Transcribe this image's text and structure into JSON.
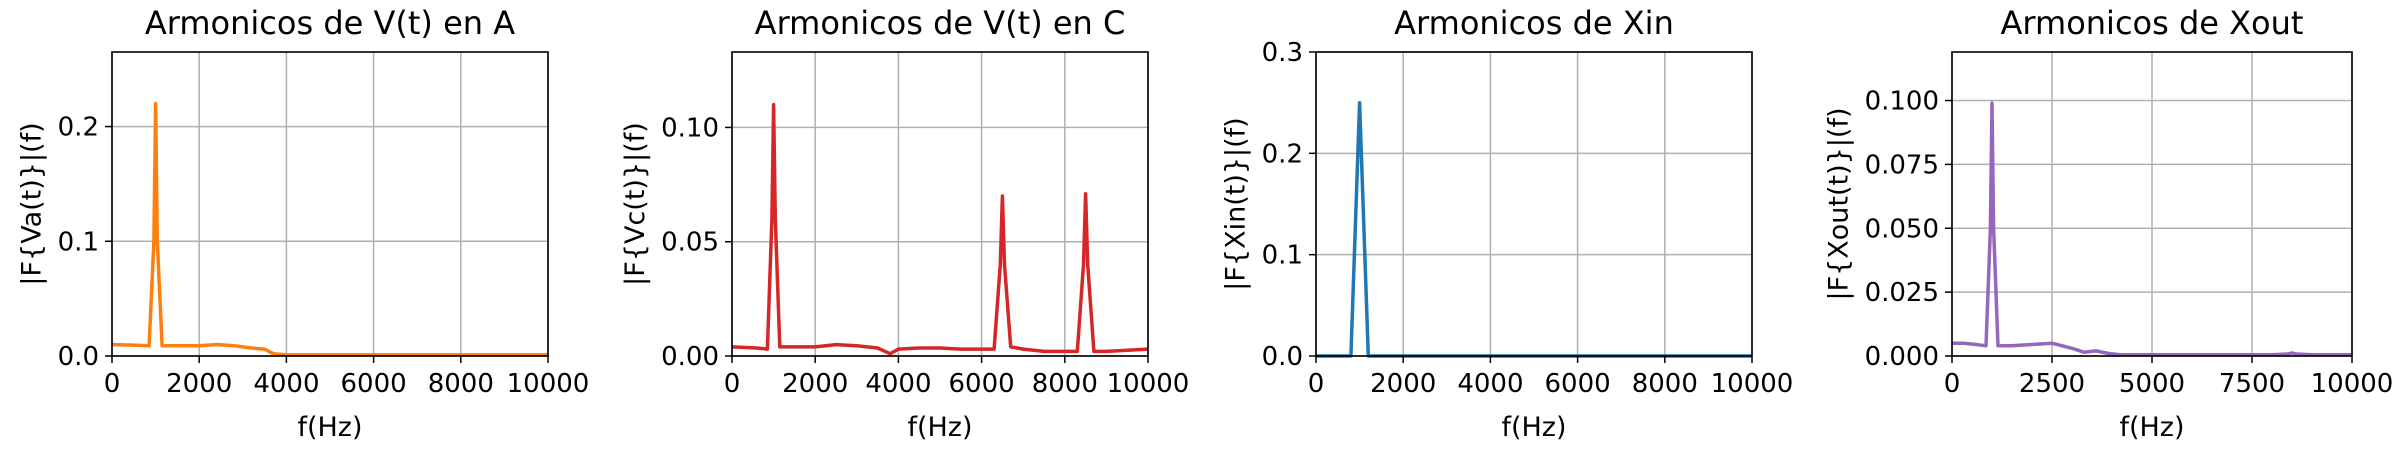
{
  "chart_data": [
    {
      "type": "line",
      "title": "Armonicos de V(t) en A",
      "xlabel": "f(Hz)",
      "ylabel": "|F{Va(t)}|(f)",
      "color": "#ff7f0e",
      "grid": true,
      "xlim": [
        0,
        10000
      ],
      "ylim": [
        0,
        0.265
      ],
      "xticks": [
        0,
        2000,
        4000,
        6000,
        8000,
        10000
      ],
      "xtick_labels": [
        "0",
        "2000",
        "4000",
        "6000",
        "8000",
        "10000"
      ],
      "yticks": [
        0,
        0.1,
        0.2
      ],
      "ytick_labels": [
        "0.0",
        "0.1",
        "0.2"
      ],
      "x": [
        0,
        500,
        850,
        960,
        1000,
        1040,
        1150,
        1500,
        2000,
        2400,
        2800,
        3200,
        3500,
        3700,
        4000,
        6000,
        8000,
        10000
      ],
      "y": [
        0.01,
        0.0095,
        0.009,
        0.1,
        0.22,
        0.1,
        0.009,
        0.009,
        0.009,
        0.01,
        0.009,
        0.007,
        0.006,
        0.002,
        0.001,
        0.001,
        0.001,
        0.001
      ]
    },
    {
      "type": "line",
      "title": "Armonicos de V(t) en C",
      "xlabel": "f(Hz)",
      "ylabel": "|F{Vc(t)}|(f)",
      "color": "#d62728",
      "grid": true,
      "xlim": [
        0,
        10000
      ],
      "ylim": [
        0,
        0.133
      ],
      "xticks": [
        0,
        2000,
        4000,
        6000,
        8000,
        10000
      ],
      "xtick_labels": [
        "0",
        "2000",
        "4000",
        "6000",
        "8000",
        "10000"
      ],
      "yticks": [
        0,
        0.05,
        0.1
      ],
      "ytick_labels": [
        "0.00",
        "0.05",
        "0.10"
      ],
      "x": [
        0,
        600,
        850,
        960,
        1000,
        1040,
        1150,
        1500,
        2000,
        2500,
        3000,
        3500,
        3800,
        4000,
        4500,
        5000,
        5500,
        6000,
        6300,
        6450,
        6500,
        6550,
        6700,
        7000,
        7500,
        8000,
        8300,
        8450,
        8500,
        8550,
        8700,
        9000,
        9500,
        10000
      ],
      "y": [
        0.004,
        0.0035,
        0.003,
        0.06,
        0.11,
        0.06,
        0.004,
        0.004,
        0.004,
        0.005,
        0.0045,
        0.0035,
        0.001,
        0.003,
        0.0035,
        0.0035,
        0.003,
        0.003,
        0.003,
        0.04,
        0.07,
        0.04,
        0.004,
        0.003,
        0.002,
        0.002,
        0.002,
        0.04,
        0.071,
        0.04,
        0.002,
        0.002,
        0.0025,
        0.003
      ]
    },
    {
      "type": "line",
      "title": "Armonicos de Xin",
      "xlabel": "f(Hz)",
      "ylabel": "|F{Xin(t)}|(f)",
      "color": "#1f77b4",
      "grid": true,
      "xlim": [
        0,
        10000
      ],
      "ylim": [
        0,
        0.3
      ],
      "xticks": [
        0,
        2000,
        4000,
        6000,
        8000,
        10000
      ],
      "xtick_labels": [
        "0",
        "2000",
        "4000",
        "6000",
        "8000",
        "10000"
      ],
      "yticks": [
        0,
        0.1,
        0.2,
        0.3
      ],
      "ytick_labels": [
        "0.0",
        "0.1",
        "0.2",
        "0.3"
      ],
      "x": [
        0,
        800,
        1000,
        1200,
        2000,
        4000,
        6000,
        8000,
        10000
      ],
      "y": [
        0,
        0,
        0.25,
        0,
        0,
        0,
        0,
        0,
        0
      ]
    },
    {
      "type": "line",
      "title": "Armonicos de Xout",
      "xlabel": "f(Hz)",
      "ylabel": "|F{Xout(t)}|(f)",
      "color": "#9467bd",
      "grid": true,
      "xlim": [
        0,
        10000
      ],
      "ylim": [
        0,
        0.119
      ],
      "xticks": [
        0,
        2500,
        5000,
        7500,
        10000
      ],
      "xtick_labels": [
        "0",
        "2500",
        "5000",
        "7500",
        "10000"
      ],
      "yticks": [
        0,
        0.025,
        0.05,
        0.075,
        0.1
      ],
      "ytick_labels": [
        "0.000",
        "0.025",
        "0.050",
        "0.075",
        "0.100"
      ],
      "x": [
        0,
        300,
        600,
        850,
        960,
        1000,
        1040,
        1150,
        1500,
        2000,
        2500,
        3000,
        3300,
        3600,
        3900,
        4200,
        5000,
        6000,
        7000,
        8000,
        8400,
        8500,
        8600,
        9000,
        10000
      ],
      "y": [
        0.005,
        0.005,
        0.0045,
        0.004,
        0.05,
        0.099,
        0.05,
        0.004,
        0.004,
        0.0045,
        0.005,
        0.003,
        0.0015,
        0.002,
        0.001,
        0.0005,
        0.0005,
        0.0005,
        0.0005,
        0.0005,
        0.0008,
        0.0012,
        0.0008,
        0.0005,
        0.0005
      ]
    }
  ]
}
